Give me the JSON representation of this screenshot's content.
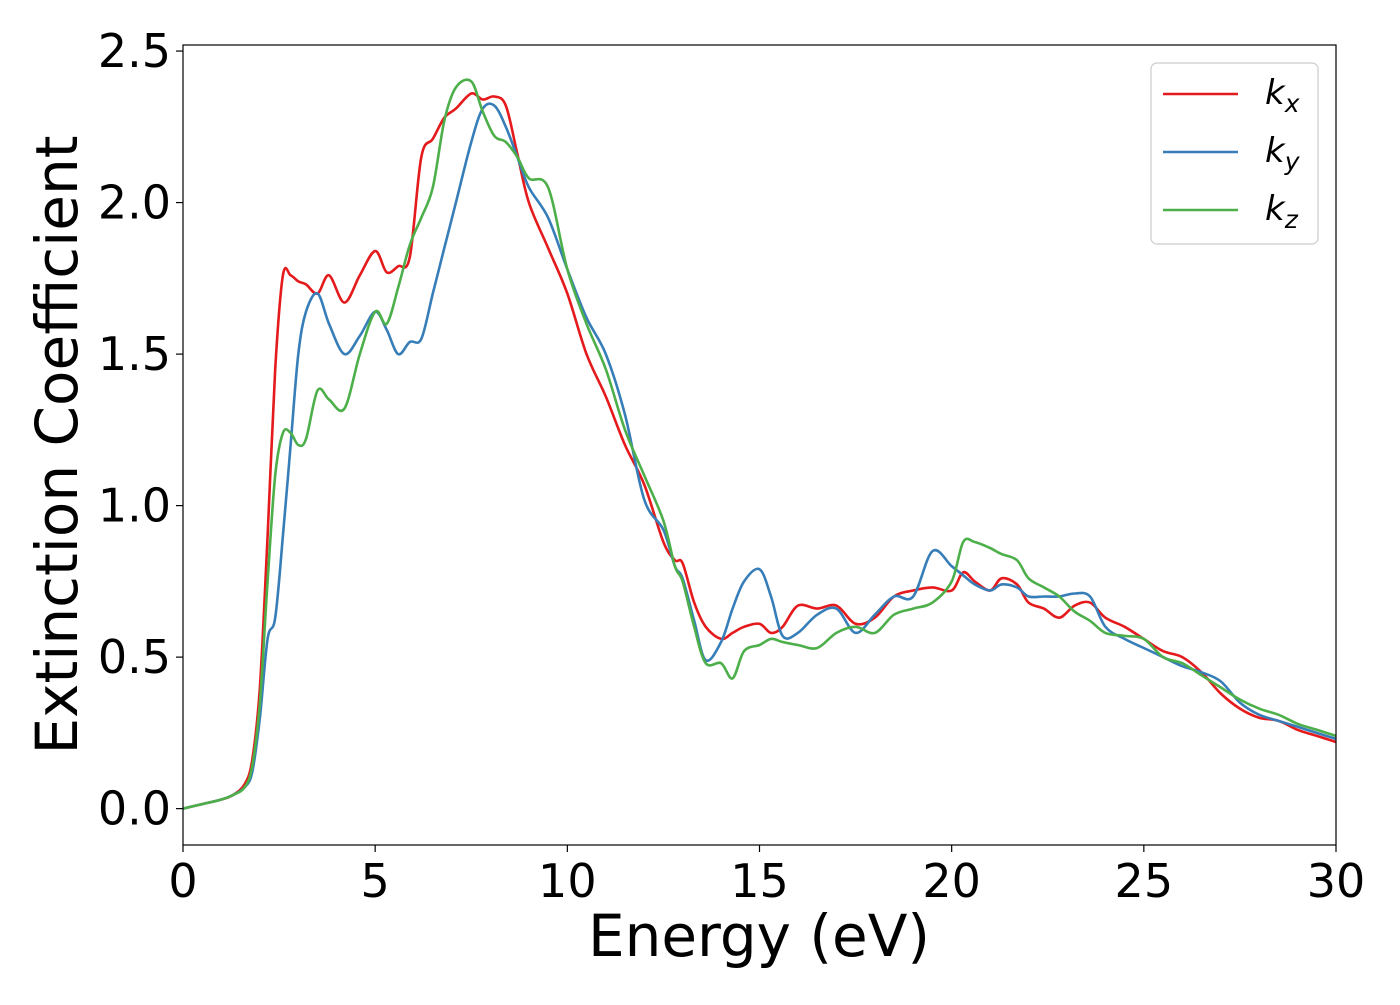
{
  "chart_data": {
    "type": "line",
    "title": "",
    "xlabel": "Energy (eV)",
    "ylabel": "Extinction Coefficient",
    "xlim": [
      0,
      30
    ],
    "ylim": [
      -0.12,
      2.52
    ],
    "xticks": [
      0,
      5,
      10,
      15,
      20,
      25,
      30
    ],
    "xtick_labels": [
      "0",
      "5",
      "10",
      "15",
      "20",
      "25",
      "30"
    ],
    "yticks": [
      0.0,
      0.5,
      1.0,
      1.5,
      2.0,
      2.5
    ],
    "ytick_labels": [
      "0.0",
      "0.5",
      "1.0",
      "1.5",
      "2.0",
      "2.5"
    ],
    "grid": false,
    "legend_position": "top-right",
    "series": [
      {
        "name": "k_x",
        "label_main": "k",
        "label_sub": "x",
        "color": "#e41a1c",
        "x": [
          0,
          0.5,
          1,
          1.3,
          1.6,
          1.8,
          2,
          2.2,
          2.4,
          2.6,
          2.8,
          3,
          3.2,
          3.5,
          3.8,
          4.2,
          4.6,
          5,
          5.3,
          5.6,
          5.9,
          6.2,
          6.5,
          6.8,
          7.1,
          7.5,
          7.8,
          8.1,
          8.4,
          8.7,
          9,
          9.5,
          10,
          10.5,
          11,
          11.5,
          12,
          12.5,
          12.8,
          13,
          13.3,
          13.6,
          14,
          14.3,
          14.6,
          15,
          15.3,
          15.6,
          16,
          16.5,
          17,
          17.5,
          18,
          18.5,
          19,
          19.5,
          20,
          20.3,
          20.6,
          21,
          21.3,
          21.7,
          22,
          22.4,
          22.8,
          23.2,
          23.6,
          24,
          24.5,
          25,
          25.5,
          26,
          26.5,
          27,
          27.5,
          28,
          28.5,
          29,
          29.5,
          30
        ],
        "y": [
          0,
          0.015,
          0.03,
          0.045,
          0.08,
          0.16,
          0.4,
          0.9,
          1.45,
          1.76,
          1.76,
          1.74,
          1.73,
          1.7,
          1.76,
          1.67,
          1.76,
          1.84,
          1.77,
          1.79,
          1.82,
          2.15,
          2.21,
          2.28,
          2.31,
          2.36,
          2.34,
          2.35,
          2.32,
          2.16,
          2,
          1.85,
          1.7,
          1.5,
          1.36,
          1.2,
          1.07,
          0.88,
          0.82,
          0.81,
          0.68,
          0.6,
          0.56,
          0.58,
          0.6,
          0.61,
          0.58,
          0.6,
          0.67,
          0.66,
          0.67,
          0.61,
          0.63,
          0.7,
          0.72,
          0.73,
          0.72,
          0.78,
          0.75,
          0.72,
          0.76,
          0.74,
          0.68,
          0.66,
          0.63,
          0.67,
          0.68,
          0.63,
          0.6,
          0.56,
          0.52,
          0.5,
          0.45,
          0.38,
          0.33,
          0.3,
          0.29,
          0.26,
          0.24,
          0.22
        ]
      },
      {
        "name": "k_y",
        "label_main": "k",
        "label_sub": "y",
        "color": "#377eb8",
        "x": [
          0,
          0.5,
          1,
          1.3,
          1.6,
          1.8,
          2,
          2.2,
          2.4,
          2.6,
          2.8,
          3,
          3.2,
          3.5,
          3.8,
          4.2,
          4.6,
          5,
          5.3,
          5.6,
          5.9,
          6.2,
          6.5,
          6.8,
          7.1,
          7.5,
          7.8,
          8.1,
          8.4,
          8.7,
          9,
          9.5,
          10,
          10.5,
          11,
          11.5,
          12,
          12.5,
          12.8,
          13,
          13.3,
          13.6,
          14,
          14.3,
          14.6,
          15,
          15.3,
          15.6,
          16,
          16.5,
          17,
          17.5,
          18,
          18.5,
          19,
          19.5,
          20,
          20.3,
          20.6,
          21,
          21.3,
          21.7,
          22,
          22.4,
          22.8,
          23.2,
          23.6,
          24,
          24.5,
          25,
          25.5,
          26,
          26.5,
          27,
          27.5,
          28,
          28.5,
          29,
          29.5,
          30
        ],
        "y": [
          0,
          0.015,
          0.03,
          0.045,
          0.07,
          0.12,
          0.3,
          0.56,
          0.63,
          0.9,
          1.2,
          1.5,
          1.64,
          1.7,
          1.6,
          1.5,
          1.56,
          1.64,
          1.58,
          1.5,
          1.54,
          1.55,
          1.7,
          1.85,
          2,
          2.2,
          2.31,
          2.32,
          2.25,
          2.15,
          2.05,
          1.95,
          1.78,
          1.62,
          1.5,
          1.3,
          1.02,
          0.92,
          0.8,
          0.76,
          0.62,
          0.49,
          0.55,
          0.66,
          0.75,
          0.79,
          0.7,
          0.57,
          0.58,
          0.64,
          0.66,
          0.58,
          0.64,
          0.7,
          0.7,
          0.85,
          0.8,
          0.77,
          0.74,
          0.72,
          0.74,
          0.73,
          0.7,
          0.7,
          0.7,
          0.71,
          0.7,
          0.6,
          0.56,
          0.53,
          0.5,
          0.47,
          0.45,
          0.42,
          0.35,
          0.31,
          0.29,
          0.27,
          0.25,
          0.23
        ]
      },
      {
        "name": "k_z",
        "label_main": "k",
        "label_sub": "z",
        "color": "#4daf4a",
        "x": [
          0,
          0.5,
          1,
          1.3,
          1.6,
          1.8,
          2,
          2.2,
          2.4,
          2.6,
          2.8,
          3,
          3.2,
          3.5,
          3.8,
          4.2,
          4.6,
          5,
          5.3,
          5.6,
          5.9,
          6.2,
          6.5,
          6.8,
          7.1,
          7.5,
          7.8,
          8.1,
          8.4,
          8.7,
          9,
          9.5,
          10,
          10.5,
          11,
          11.5,
          12,
          12.5,
          12.8,
          13,
          13.3,
          13.6,
          14,
          14.3,
          14.6,
          15,
          15.3,
          15.6,
          16,
          16.5,
          17,
          17.5,
          18,
          18.5,
          19,
          19.5,
          20,
          20.3,
          20.6,
          21,
          21.3,
          21.7,
          22,
          22.4,
          22.8,
          23.2,
          23.6,
          24,
          24.5,
          25,
          25.5,
          26,
          26.5,
          27,
          27.5,
          28,
          28.5,
          29,
          29.5,
          30
        ],
        "y": [
          0,
          0.015,
          0.03,
          0.045,
          0.07,
          0.14,
          0.35,
          0.75,
          1.1,
          1.24,
          1.24,
          1.2,
          1.22,
          1.38,
          1.35,
          1.32,
          1.5,
          1.64,
          1.6,
          1.72,
          1.86,
          1.95,
          2.05,
          2.27,
          2.38,
          2.4,
          2.3,
          2.22,
          2.2,
          2.15,
          2.08,
          2.05,
          1.78,
          1.6,
          1.45,
          1.25,
          1.1,
          0.95,
          0.8,
          0.75,
          0.6,
          0.48,
          0.48,
          0.43,
          0.52,
          0.54,
          0.56,
          0.55,
          0.54,
          0.53,
          0.58,
          0.6,
          0.58,
          0.64,
          0.66,
          0.68,
          0.75,
          0.88,
          0.88,
          0.86,
          0.84,
          0.82,
          0.76,
          0.73,
          0.7,
          0.65,
          0.62,
          0.58,
          0.57,
          0.56,
          0.5,
          0.48,
          0.44,
          0.4,
          0.36,
          0.33,
          0.31,
          0.28,
          0.26,
          0.24
        ]
      }
    ]
  }
}
